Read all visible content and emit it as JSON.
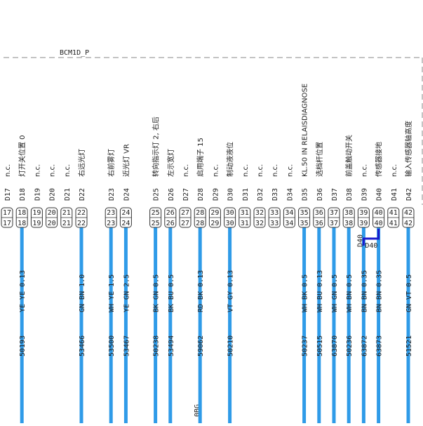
{
  "header": {
    "title": "BCM1D_P"
  },
  "pins": [
    {
      "number": "17",
      "label": "D17",
      "description": "n.c."
    },
    {
      "number": "18",
      "label": "D18",
      "description": "灯开关位置 0",
      "wire": {
        "spec": "YE YE 0.13",
        "id": "50193"
      }
    },
    {
      "number": "19",
      "label": "D19",
      "description": "n.c."
    },
    {
      "number": "20",
      "label": "D20",
      "description": "n.c."
    },
    {
      "number": "21",
      "label": "D21",
      "description": "n.c."
    },
    {
      "number": "22",
      "label": "D22",
      "description": "右远光灯",
      "wire": {
        "spec": "GN BN 1.0",
        "id": "53466"
      }
    },
    {
      "number": "23",
      "label": "D23",
      "description": "右前雾灯",
      "wire": {
        "spec": "WH YE 1.5",
        "id": "53500"
      }
    },
    {
      "number": "24",
      "label": "D24",
      "description": "近光灯 VR",
      "wire": {
        "spec": "YE GN 2.5",
        "id": "53467"
      }
    },
    {
      "number": "25",
      "label": "D25",
      "description": "转向指示灯 2, 右后",
      "wire": {
        "spec": "BK GN 0.5",
        "id": "50238"
      }
    },
    {
      "number": "26",
      "label": "D26",
      "description": "左示宽灯",
      "wire": {
        "spec": "BK BU 0.5",
        "id": "53494"
      }
    },
    {
      "number": "27",
      "label": "D27",
      "description": "n.c."
    },
    {
      "number": "28",
      "label": "D28",
      "description": "启用端子 15",
      "wire": {
        "spec": "RD BK 0.13",
        "id": "59062"
      }
    },
    {
      "number": "29",
      "label": "D29",
      "description": "n.c."
    },
    {
      "number": "30",
      "label": "D30",
      "description": "制动液液位",
      "wire": {
        "spec": "VT GY 0.13",
        "id": "50210"
      }
    },
    {
      "number": "31",
      "label": "D31",
      "description": "n.c."
    },
    {
      "number": "32",
      "label": "D32",
      "description": "n.c."
    },
    {
      "number": "33",
      "label": "D33",
      "description": "n.c."
    },
    {
      "number": "34",
      "label": "D34",
      "description": "n.c."
    },
    {
      "number": "35",
      "label": "D35",
      "description": "KL.50 IN RELAISDIAGNOSE",
      "wire": {
        "spec": "WH BK 0.5",
        "id": "50237"
      }
    },
    {
      "number": "36",
      "label": "D36",
      "description": "选档杆位置",
      "wire": {
        "spec": "WH BU 0.13",
        "id": "50515"
      }
    },
    {
      "number": "37",
      "label": "D37",
      "wire": {
        "spec": "WH GN 0.5",
        "id": "63870"
      }
    },
    {
      "number": "38",
      "label": "D38",
      "description": "前盖触动开关",
      "wire": {
        "spec": "WH BN 0.5",
        "id": "50236"
      }
    },
    {
      "number": "39",
      "label": "D39",
      "description": "n.c.",
      "wire": {
        "spec": "BN BN 0.35",
        "id": "63872"
      }
    },
    {
      "number": "40",
      "label": "D40",
      "description": "传感器接地",
      "wire": {
        "spec": "BN BN 0.35",
        "id": "63873"
      }
    },
    {
      "number": "41",
      "label": "D41",
      "description": "n.c."
    },
    {
      "number": "42",
      "label": "D42",
      "description": "输入传感器轴高度",
      "wire": {
        "spec": "GN VT 0.5",
        "id": "51521"
      }
    }
  ],
  "splice": {
    "labels": [
      "D40",
      "D40"
    ]
  },
  "ground": {
    "label": "0BG"
  }
}
